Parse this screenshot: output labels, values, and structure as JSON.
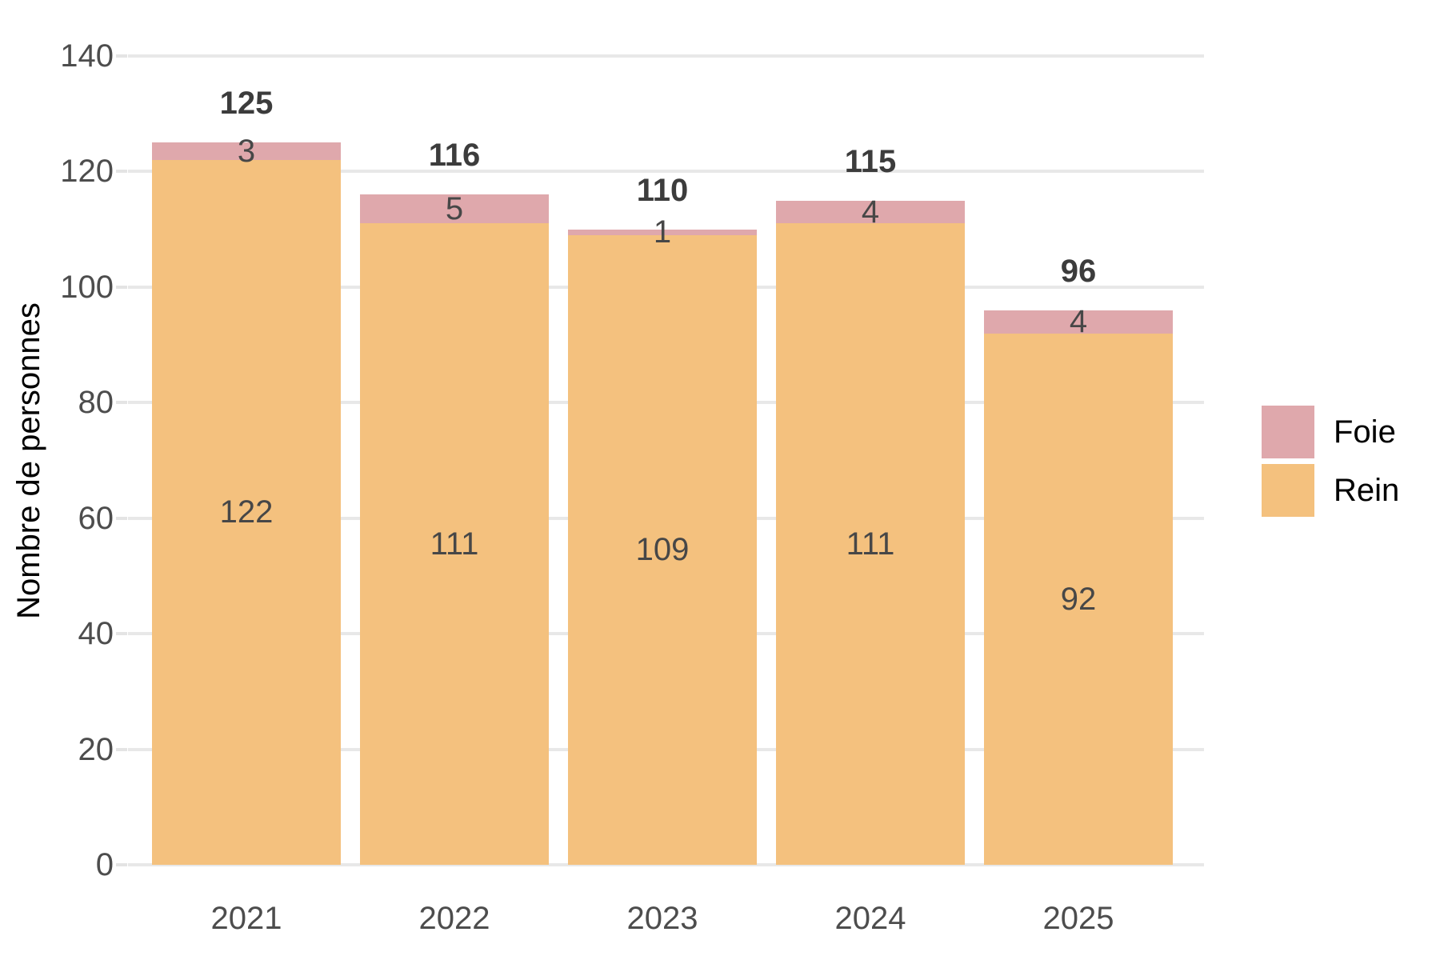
{
  "chart_data": {
    "type": "bar",
    "stacked": true,
    "title": "",
    "xlabel": "",
    "ylabel": "Nombre de personnes",
    "categories": [
      "2021",
      "2022",
      "2023",
      "2024",
      "2025"
    ],
    "series": [
      {
        "name": "Foie",
        "color": "#DFA8AC",
        "values": [
          3,
          5,
          1,
          4,
          4
        ]
      },
      {
        "name": "Rein",
        "color": "#F4C17E",
        "values": [
          122,
          111,
          109,
          111,
          92
        ]
      }
    ],
    "totals": [
      125,
      116,
      110,
      115,
      96
    ],
    "ylim": [
      0,
      140
    ],
    "yticks": [
      0,
      20,
      40,
      60,
      80,
      100,
      120,
      140
    ],
    "grid": true,
    "legend_position": "right-center"
  },
  "colors": {
    "foie": "#DFA8AC",
    "rein": "#F4C17E",
    "gridline": "#E8E8E8",
    "axis_text": "#4D4D4D",
    "segment_label": "#474747",
    "total_label": "#3C3C3C",
    "background": "#FFFFFF"
  }
}
